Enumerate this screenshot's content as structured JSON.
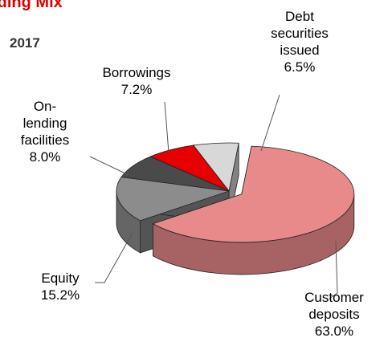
{
  "chart_data": {
    "type": "pie",
    "title": "Funding Mix",
    "subtitle": "2017",
    "categories": [
      "Customer deposits",
      "Equity",
      "On-lending facilities",
      "Borrowings",
      "Debt securities issued"
    ],
    "values": [
      63.0,
      15.2,
      8.0,
      7.2,
      6.5
    ],
    "value_labels": [
      "63.0%",
      "15.2%",
      "8.0%",
      "7.2%",
      "6.5%"
    ],
    "colors": [
      "#e88a8a",
      "#8c8c8c",
      "#4a4a4a",
      "#e60000",
      "#d8d8d8"
    ]
  }
}
